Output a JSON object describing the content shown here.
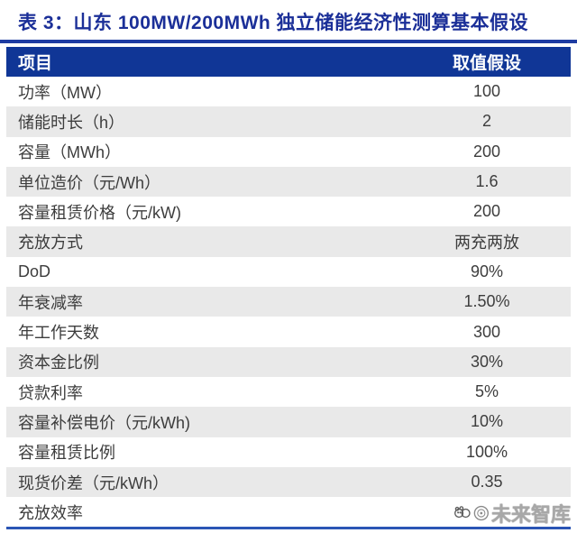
{
  "table": {
    "title": "表 3：山东 100MW/200MWh 独立储能经济性测算基本假设",
    "columns": [
      "项目",
      "取值假设"
    ],
    "rows": [
      {
        "label": "功率（MW）",
        "value": "100"
      },
      {
        "label": "储能时长（h）",
        "value": "2"
      },
      {
        "label": "容量（MWh）",
        "value": "200"
      },
      {
        "label": "单位造价（元/Wh）",
        "value": "1.6"
      },
      {
        "label": "容量租赁价格（元/kW)",
        "value": "200"
      },
      {
        "label": "充放方式",
        "value": "两充两放"
      },
      {
        "label": "DoD",
        "value": "90%"
      },
      {
        "label": "年衰减率",
        "value": "1.50%"
      },
      {
        "label": "年工作天数",
        "value": "300"
      },
      {
        "label": "资本金比例",
        "value": "30%"
      },
      {
        "label": "贷款利率",
        "value": "5%"
      },
      {
        "label": "容量补偿电价（元/kWh)",
        "value": "10%"
      },
      {
        "label": "容量租赁比例",
        "value": "100%"
      },
      {
        "label": "现货价差（元/kWh）",
        "value": "0.35"
      },
      {
        "label": "充放效率",
        "value": ""
      }
    ]
  },
  "chart_data": {
    "type": "table",
    "title": "表 3：山东 100MW/200MWh 独立储能经济性测算基本假设",
    "columns": [
      "项目",
      "取值假设"
    ],
    "rows": [
      [
        "功率（MW）",
        "100"
      ],
      [
        "储能时长（h）",
        "2"
      ],
      [
        "容量（MWh）",
        "200"
      ],
      [
        "单位造价（元/Wh）",
        "1.6"
      ],
      [
        "容量租赁价格（元/kW)",
        "200"
      ],
      [
        "充放方式",
        "两充两放"
      ],
      [
        "DoD",
        "90%"
      ],
      [
        "年衰减率",
        "1.50%"
      ],
      [
        "年工作天数",
        "300"
      ],
      [
        "资本金比例",
        "30%"
      ],
      [
        "贷款利率",
        "5%"
      ],
      [
        "容量补偿电价（元/kWh)",
        "10%"
      ],
      [
        "容量租赁比例",
        "100%"
      ],
      [
        "现货价差（元/kWh）",
        "0.35"
      ],
      [
        "充放效率",
        ""
      ]
    ]
  },
  "watermark": {
    "logo": "panda-logo",
    "stamp": "circle-stamp-logo",
    "text": "未来智库"
  },
  "colors": {
    "title_text": "#1b2f98",
    "header_bg": "#103696",
    "header_text": "#ffffff",
    "row_alt_bg": "#e9e9e9",
    "body_text": "#3d3d3d",
    "title_rule": "#1e3ca2",
    "bottom_rule": "#2b55b5",
    "watermark_gray": "#9a9a9a"
  }
}
